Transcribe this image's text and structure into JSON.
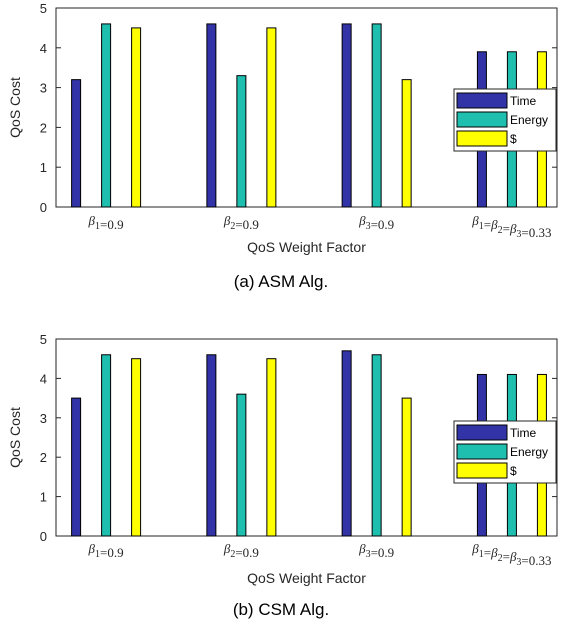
{
  "colors": {
    "Time": "#3333a8",
    "Energy": "#1fbfb0",
    "$": "#ffff00"
  },
  "chart_data": [
    {
      "type": "bar",
      "caption": "(a) ASM Alg.",
      "xlabel": "QoS Weight Factor",
      "ylabel": "QoS Cost",
      "ylim": [
        0,
        5
      ],
      "yticks": [
        "0",
        "1",
        "2",
        "3",
        "4",
        "5"
      ],
      "categories": [
        "β1=0.9",
        "β2=0.9",
        "β3=0.9",
        "β1=β2=β3=0.33"
      ],
      "legend_position": "right",
      "series": [
        {
          "name": "Time",
          "values": [
            3.2,
            4.6,
            4.6,
            3.9
          ]
        },
        {
          "name": "Energy",
          "values": [
            4.6,
            3.3,
            4.6,
            3.9
          ]
        },
        {
          "name": "$",
          "values": [
            4.5,
            4.5,
            3.2,
            3.9
          ]
        }
      ]
    },
    {
      "type": "bar",
      "caption": "(b) CSM Alg.",
      "xlabel": "QoS Weight Factor",
      "ylabel": "QoS Cost",
      "ylim": [
        0,
        5
      ],
      "yticks": [
        "0",
        "1",
        "2",
        "3",
        "4",
        "5"
      ],
      "categories": [
        "β1=0.9",
        "β2=0.9",
        "β3=0.9",
        "β1=β2=β3=0.33"
      ],
      "legend_position": "right",
      "series": [
        {
          "name": "Time",
          "values": [
            3.5,
            4.6,
            4.7,
            4.1
          ]
        },
        {
          "name": "Energy",
          "values": [
            4.6,
            3.6,
            4.6,
            4.1
          ]
        },
        {
          "name": "$",
          "values": [
            4.5,
            4.5,
            3.5,
            4.1
          ]
        }
      ]
    }
  ]
}
